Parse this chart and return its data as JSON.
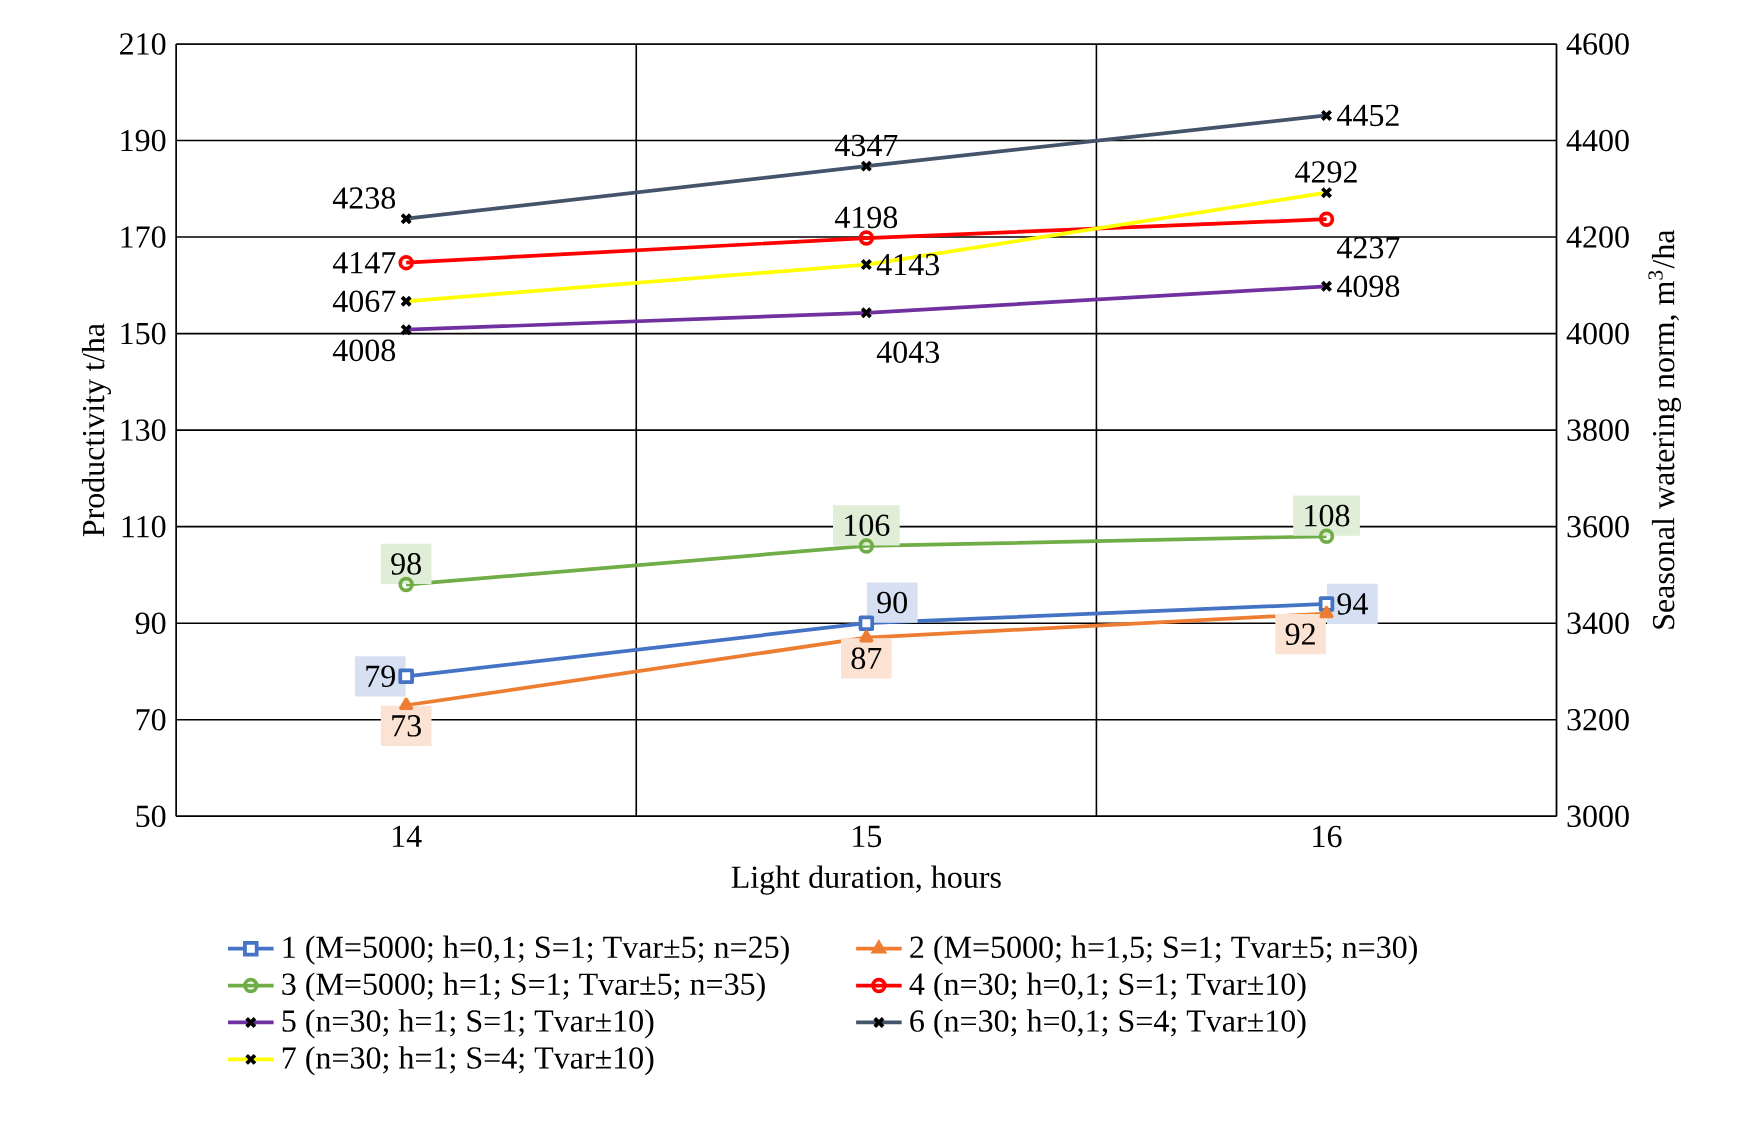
{
  "chart_data": {
    "type": "line",
    "xlabel": "Light duration, hours",
    "ylabel": "Productivity t/ha",
    "y2label": "Seasonal watering norm, m$^{3}$/ha",
    "categories": [
      "14",
      "15",
      "16"
    ],
    "ylim": [
      50,
      210
    ],
    "yticks": [
      50,
      70,
      90,
      110,
      130,
      150,
      170,
      190,
      210
    ],
    "y2lim": [
      3000,
      4600
    ],
    "y2ticks": [
      3000,
      3200,
      3400,
      3600,
      3800,
      4000,
      4200,
      4400,
      4600
    ],
    "grid": true,
    "legend": "bottom",
    "data_labels": true,
    "series": [
      {
        "name": "1 (M=5000; h=0,1; S=1; Tvar±5; n=25)",
        "color": "#4472c4",
        "marker": "square",
        "values": [
          79,
          90,
          94
        ]
      },
      {
        "name": "2 (M=5000; h=1,5; S=1; Tvar±5; n=30)",
        "color": "#ed7d31",
        "marker": "triangle",
        "values": [
          73,
          87,
          92
        ]
      },
      {
        "name": "3 (M=5000; h=1; S=1; Tvar±5; n=35)",
        "color": "#70ad47",
        "marker": "circle",
        "values": [
          98,
          106,
          108
        ]
      },
      {
        "name": "4 (n=30; h=0,1; S=1; Tvar±10)",
        "color": "#ff0000",
        "marker": "circle",
        "axis": "y2",
        "values": [
          4147,
          4198,
          4237
        ]
      },
      {
        "name": "5 (n=30; h=1; S=1; Tvar±10)",
        "color": "#7030a0",
        "marker": "cross",
        "axis": "y2",
        "values": [
          4008,
          4043,
          4098
        ]
      },
      {
        "name": "6 (n=30; h=0,1; S=4; Tvar±10)",
        "color": "#44546a",
        "marker": "cross",
        "axis": "y2",
        "values": [
          4238,
          4347,
          4452
        ]
      },
      {
        "name": "7 (n=30; h=1; S=4; Tvar±10)",
        "color": "#ffff00",
        "marker": "cross",
        "axis": "y2",
        "values": [
          4067,
          4143,
          4292
        ]
      }
    ]
  }
}
